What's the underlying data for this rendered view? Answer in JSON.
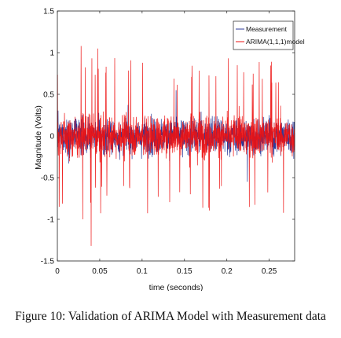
{
  "chart_data": {
    "type": "line",
    "xlabel": "time (seconds)",
    "ylabel": "Magnitude (Volts)",
    "xlim": [
      0,
      0.28
    ],
    "ylim": [
      -1.5,
      1.5
    ],
    "x_ticks": [
      "0",
      "0.05",
      "0.1",
      "0.15",
      "0.2",
      "0.25"
    ],
    "x_tick_values": [
      0,
      0.05,
      0.1,
      0.15,
      0.2,
      0.25
    ],
    "y_ticks": [
      "1.5",
      "1",
      "0.5",
      "0",
      "-0.5",
      "-1",
      "-1.5"
    ],
    "y_tick_values": [
      1.5,
      1,
      0.5,
      0,
      -0.5,
      -1,
      -1.5
    ],
    "legend_position": "top-right",
    "grid": false,
    "series": [
      {
        "name": "Measurement",
        "color": "#2b3a9a",
        "amplitude": 0.4,
        "peak_max": 0.55,
        "peak_min": -0.55
      },
      {
        "name": "ARIMA(1,1,1)model",
        "color": "#ee1111",
        "amplitude": 0.45,
        "peak_max": 1.08,
        "peak_min": -1.32
      }
    ]
  },
  "caption": "Figure 10: Validation of ARIMA Model with Measurement data"
}
